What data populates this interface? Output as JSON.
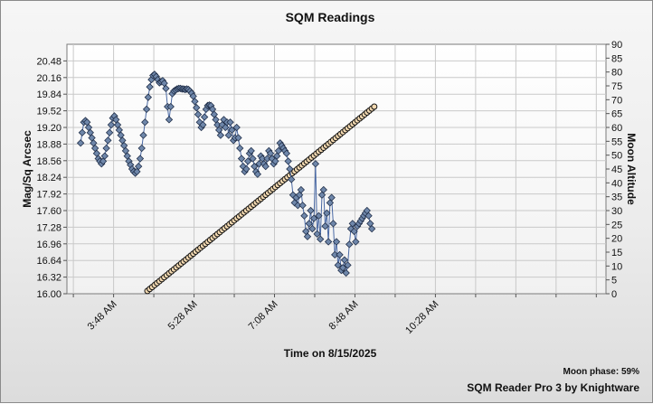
{
  "chart_data": {
    "type": "line",
    "title": "SQM Readings",
    "xlabel": "Time on 8/15/2025",
    "ylabel": "Mag/Sq Arcsec",
    "y2label": "Moon Altitude",
    "x_tick_labels": [
      "3:48 AM",
      "5:28 AM",
      "7:08 AM",
      "8:48 AM",
      "10:28 AM"
    ],
    "x_range_minutes": [
      170,
      840
    ],
    "y_ticks": [
      "16.00",
      "16.32",
      "16.64",
      "16.96",
      "17.28",
      "17.60",
      "17.92",
      "18.24",
      "18.56",
      "18.88",
      "19.20",
      "19.52",
      "19.84",
      "20.16",
      "20.48"
    ],
    "ylim": [
      16.0,
      20.8
    ],
    "y2_ticks": [
      "0",
      "5",
      "10",
      "15",
      "20",
      "25",
      "30",
      "35",
      "40",
      "45",
      "50",
      "55",
      "60",
      "65",
      "70",
      "75",
      "80",
      "85",
      "90"
    ],
    "y2lim": [
      0,
      90
    ],
    "grid": true,
    "series": [
      {
        "axis": "left",
        "marker": "diamond",
        "color": "#6f87aa",
        "points": [
          [
            187,
            18.9
          ],
          [
            189,
            19.1
          ],
          [
            191,
            19.3
          ],
          [
            193,
            19.33
          ],
          [
            195,
            19.3
          ],
          [
            197,
            19.2
          ],
          [
            199,
            19.1
          ],
          [
            201,
            19.0
          ],
          [
            203,
            18.9
          ],
          [
            205,
            18.8
          ],
          [
            207,
            18.7
          ],
          [
            209,
            18.6
          ],
          [
            211,
            18.55
          ],
          [
            213,
            18.5
          ],
          [
            215,
            18.55
          ],
          [
            217,
            18.65
          ],
          [
            219,
            18.8
          ],
          [
            221,
            18.95
          ],
          [
            223,
            19.1
          ],
          [
            225,
            19.25
          ],
          [
            227,
            19.38
          ],
          [
            229,
            19.42
          ],
          [
            231,
            19.35
          ],
          [
            233,
            19.25
          ],
          [
            235,
            19.15
          ],
          [
            237,
            19.05
          ],
          [
            239,
            18.95
          ],
          [
            241,
            18.85
          ],
          [
            243,
            18.75
          ],
          [
            245,
            18.65
          ],
          [
            247,
            18.55
          ],
          [
            249,
            18.48
          ],
          [
            251,
            18.4
          ],
          [
            253,
            18.35
          ],
          [
            255,
            18.32
          ],
          [
            257,
            18.35
          ],
          [
            259,
            18.45
          ],
          [
            261,
            18.6
          ],
          [
            263,
            18.8
          ],
          [
            265,
            19.05
          ],
          [
            267,
            19.3
          ],
          [
            269,
            19.55
          ],
          [
            271,
            19.78
          ],
          [
            273,
            19.98
          ],
          [
            275,
            20.12
          ],
          [
            277,
            20.2
          ],
          [
            279,
            20.22
          ],
          [
            281,
            20.18
          ],
          [
            283,
            20.12
          ],
          [
            285,
            20.06
          ],
          [
            287,
            20.08
          ],
          [
            289,
            20.1
          ],
          [
            291,
            20.05
          ],
          [
            293,
            19.95
          ],
          [
            295,
            19.6
          ],
          [
            297,
            19.35
          ],
          [
            299,
            19.6
          ],
          [
            301,
            19.85
          ],
          [
            303,
            19.9
          ],
          [
            305,
            19.92
          ],
          [
            307,
            19.94
          ],
          [
            309,
            19.95
          ],
          [
            311,
            19.95
          ],
          [
            313,
            19.94
          ],
          [
            315,
            19.94
          ],
          [
            317,
            19.93
          ],
          [
            319,
            19.94
          ],
          [
            321,
            19.93
          ],
          [
            323,
            19.9
          ],
          [
            325,
            19.86
          ],
          [
            327,
            19.8
          ],
          [
            329,
            19.7
          ],
          [
            331,
            19.58
          ],
          [
            333,
            19.45
          ],
          [
            335,
            19.3
          ],
          [
            337,
            19.2
          ],
          [
            339,
            19.25
          ],
          [
            341,
            19.4
          ],
          [
            343,
            19.55
          ],
          [
            345,
            19.62
          ],
          [
            347,
            19.63
          ],
          [
            349,
            19.62
          ],
          [
            351,
            19.55
          ],
          [
            353,
            19.45
          ],
          [
            355,
            19.35
          ],
          [
            357,
            19.25
          ],
          [
            359,
            19.15
          ],
          [
            361,
            19.05
          ],
          [
            363,
            19.25
          ],
          [
            365,
            19.35
          ],
          [
            367,
            19.2
          ],
          [
            369,
            19.3
          ],
          [
            371,
            19.05
          ],
          [
            373,
            19.3
          ],
          [
            375,
            19.15
          ],
          [
            377,
            18.95
          ],
          [
            379,
            19.0
          ],
          [
            381,
            19.2
          ],
          [
            383,
            19.0
          ],
          [
            385,
            18.8
          ],
          [
            387,
            18.6
          ],
          [
            389,
            18.45
          ],
          [
            391,
            18.35
          ],
          [
            393,
            18.4
          ],
          [
            395,
            18.55
          ],
          [
            397,
            18.7
          ],
          [
            399,
            18.75
          ],
          [
            401,
            18.6
          ],
          [
            403,
            18.45
          ],
          [
            405,
            18.35
          ],
          [
            407,
            18.3
          ],
          [
            409,
            18.5
          ],
          [
            411,
            18.65
          ],
          [
            413,
            18.6
          ],
          [
            415,
            18.5
          ],
          [
            417,
            18.45
          ],
          [
            419,
            18.6
          ],
          [
            421,
            18.75
          ],
          [
            423,
            18.7
          ],
          [
            425,
            18.6
          ],
          [
            427,
            18.5
          ],
          [
            429,
            18.55
          ],
          [
            431,
            18.65
          ],
          [
            433,
            18.75
          ],
          [
            435,
            18.9
          ],
          [
            437,
            18.85
          ],
          [
            439,
            18.8
          ],
          [
            441,
            18.75
          ],
          [
            443,
            18.7
          ],
          [
            445,
            18.55
          ],
          [
            447,
            18.4
          ],
          [
            449,
            18.2
          ],
          [
            451,
            17.9
          ],
          [
            453,
            17.75
          ],
          [
            455,
            17.85
          ],
          [
            457,
            17.7
          ],
          [
            459,
            17.9
          ],
          [
            461,
            18.0
          ],
          [
            463,
            17.7
          ],
          [
            465,
            17.5
          ],
          [
            467,
            17.2
          ],
          [
            469,
            17.1
          ],
          [
            471,
            17.35
          ],
          [
            473,
            17.6
          ],
          [
            475,
            17.25
          ],
          [
            477,
            17.45
          ],
          [
            479,
            18.5
          ],
          [
            481,
            17.15
          ],
          [
            483,
            17.5
          ],
          [
            485,
            17.05
          ],
          [
            487,
            17.9
          ],
          [
            489,
            18.0
          ],
          [
            491,
            17.3
          ],
          [
            493,
            17.55
          ],
          [
            495,
            17.0
          ],
          [
            497,
            17.75
          ],
          [
            499,
            17.85
          ],
          [
            501,
            17.35
          ],
          [
            503,
            16.75
          ],
          [
            505,
            17.0
          ],
          [
            507,
            16.55
          ],
          [
            509,
            16.75
          ],
          [
            511,
            16.45
          ],
          [
            513,
            16.5
          ],
          [
            515,
            16.65
          ],
          [
            517,
            16.4
          ],
          [
            519,
            16.55
          ],
          [
            521,
            16.95
          ],
          [
            523,
            17.25
          ],
          [
            525,
            17.35
          ],
          [
            527,
            17.2
          ],
          [
            529,
            17.0
          ],
          [
            531,
            17.3
          ],
          [
            533,
            17.35
          ],
          [
            535,
            17.4
          ],
          [
            537,
            17.45
          ],
          [
            539,
            17.5
          ],
          [
            541,
            17.55
          ],
          [
            543,
            17.6
          ],
          [
            545,
            17.5
          ],
          [
            547,
            17.35
          ],
          [
            549,
            17.25
          ]
        ]
      },
      {
        "axis": "right",
        "marker": "circle",
        "color": "#f3d9b1",
        "x_start": 270,
        "x_end": 552,
        "x_step": 3,
        "y_start": 1.0,
        "y_end": 67.5
      }
    ]
  },
  "footer": {
    "moon_phase": "Moon phase: 59%",
    "credit": "SQM Reader Pro 3 by Knightware"
  }
}
